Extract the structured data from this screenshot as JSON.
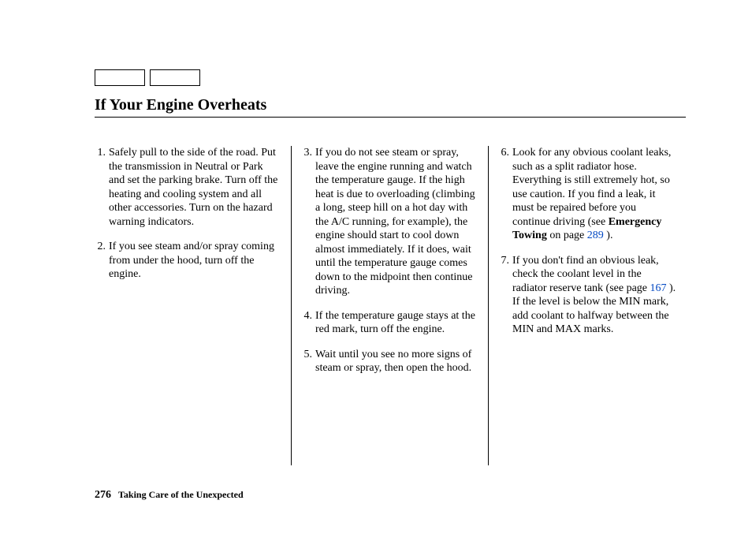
{
  "title": "If Your Engine Overheats",
  "steps": {
    "s1": {
      "n": "1.",
      "t": "Safely pull to the side of the road. Put the transmission in Neutral or Park and set the parking brake. Turn off the heating and cooling system and all other accessories. Turn on the hazard warning indicators."
    },
    "s2": {
      "n": "2.",
      "t": "If you see steam and/or spray coming from under the hood, turn off the engine."
    },
    "s3": {
      "n": "3.",
      "t": "If you do not see steam or spray, leave the engine running and watch the temperature gauge. If the high heat is due to overloading (climbing a long, steep hill on a hot day with the A/C running, for example), the engine should start to cool down almost immediately. If it does, wait until the tempera­ture gauge comes down to the mid­point then continue driving."
    },
    "s4": {
      "n": "4.",
      "t": "If the temperature gauge stays at the red mark, turn off the engine."
    },
    "s5": {
      "n": "5.",
      "t": "Wait until you see no more signs of steam or spray, then open the hood."
    },
    "s6": {
      "n": "6.",
      "pre": "Look for any obvious coolant leaks, such as a split radiator hose. Everything is still extremely hot, so use caution. If you find a leak, it must be repaired before you continue driving (see ",
      "bold": "Emergency Towing",
      "mid": " on page ",
      "link": "289",
      "post": " )."
    },
    "s7": {
      "n": "7.",
      "pre": "If you don't find an obvious leak, check the coolant level in the radiator reserve tank (see page ",
      "link": "167",
      "post": " ). If the level is below the MIN mark, add coolant to halfway between the MIN and MAX marks."
    }
  },
  "footer": {
    "page": "276",
    "section": "Taking Care of the Unexpected"
  }
}
